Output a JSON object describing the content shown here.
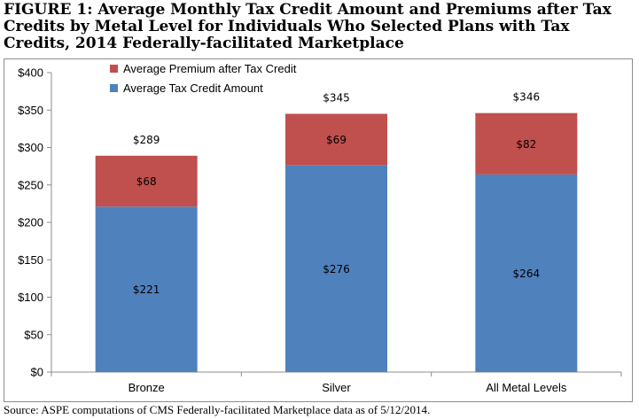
{
  "page": {
    "title": "FIGURE 1: Average Monthly Tax Credit Amount and Premiums after Tax Credits by Metal Level for Individuals Who Selected Plans with Tax Credits, 2014 Federally-facilitated Marketplace",
    "source": "Source: ASPE computations of CMS Federally-facilitated Marketplace data as of 5/12/2014."
  },
  "chart_data": {
    "type": "bar",
    "stacked": true,
    "categories": [
      "Bronze",
      "Silver",
      "All Metal Levels"
    ],
    "series": [
      {
        "name": "Average Tax Credit Amount",
        "values": [
          221,
          276,
          264
        ],
        "labels": [
          "$221",
          "$276",
          "$264"
        ],
        "color": "#4f81bd"
      },
      {
        "name": "Average Premium after Tax Credit",
        "values": [
          68,
          69,
          82
        ],
        "labels": [
          "$68",
          "$69",
          "$82"
        ],
        "color": "#c0504d"
      }
    ],
    "totals": [
      289,
      345,
      346
    ],
    "total_labels": [
      "$289",
      "$345",
      "$346"
    ],
    "ylim": [
      0,
      400
    ],
    "yticks": [
      0,
      50,
      100,
      150,
      200,
      250,
      300,
      350,
      400
    ],
    "ytick_labels": [
      "$0",
      "$50",
      "$100",
      "$150",
      "$200",
      "$250",
      "$300",
      "$350",
      "$400"
    ],
    "grid": false,
    "legend_position": "top-left",
    "legend_order": [
      "Average Premium after Tax Credit",
      "Average Tax Credit Amount"
    ]
  }
}
